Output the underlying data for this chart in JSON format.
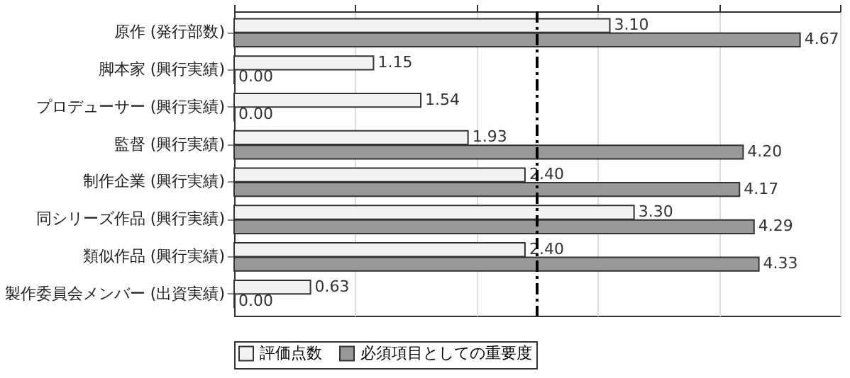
{
  "chart_data": {
    "type": "bar",
    "orientation": "horizontal",
    "categories": [
      "原作 (発行部数)",
      "脚本家 (興行実績)",
      "プロデューサー (興行実績)",
      "監督 (興行実績)",
      "制作企業 (興行実績)",
      "同シリーズ作品 (興行実績)",
      "類似作品 (興行実績)",
      "製作委員会メンバー (出資実績)"
    ],
    "series": [
      {
        "name": "評価点数",
        "color": "#f2f2f2",
        "values": [
          3.1,
          1.15,
          1.54,
          1.93,
          2.4,
          3.3,
          2.4,
          0.63
        ],
        "value_labels": [
          "3.10",
          "1.15",
          "1.54",
          "1.93",
          "2.40",
          "3.30",
          "2.40",
          "0.63"
        ]
      },
      {
        "name": "必須項目としての重要度",
        "color": "#999999",
        "values": [
          4.67,
          0,
          0,
          4.2,
          4.17,
          4.29,
          4.33,
          0
        ],
        "value_labels": [
          "4.67",
          "0.00",
          "0.00",
          "4.20",
          "4.17",
          "4.29",
          "4.33",
          "0.00"
        ]
      }
    ],
    "xlim": [
      0,
      5
    ],
    "xticks": [
      {
        "value": 0,
        "label": null
      },
      {
        "value": 1,
        "label": null
      },
      {
        "value": 2,
        "label": null
      },
      {
        "value": 3,
        "label": null
      },
      {
        "value": 4,
        "label": null
      },
      {
        "value": 5,
        "label": null
      }
    ],
    "tick_labels": "y",
    "grid": "x",
    "legend": "bottom",
    "ref_lines": [
      {
        "axis": "x",
        "value": 2.5,
        "color": "#000000",
        "line_style": "dashdot"
      }
    ]
  }
}
